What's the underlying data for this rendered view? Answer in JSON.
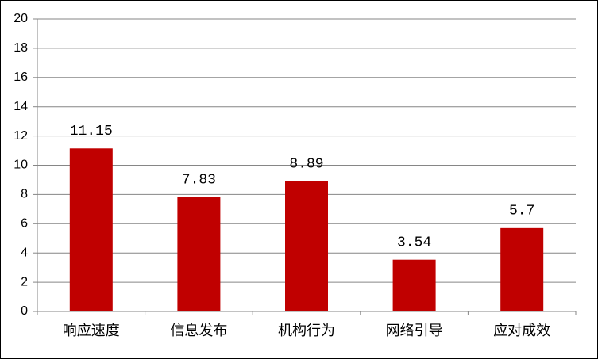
{
  "chart_data": {
    "type": "bar",
    "categories": [
      "响应速度",
      "信息发布",
      "机构行为",
      "网络引导",
      "应对成效"
    ],
    "values": [
      11.15,
      7.83,
      8.89,
      3.54,
      5.7
    ],
    "color": "#c00000",
    "ylim": [
      0,
      20
    ],
    "yticks": [
      0,
      2,
      4,
      6,
      8,
      10,
      12,
      14,
      16,
      18,
      20
    ],
    "grid": true
  }
}
